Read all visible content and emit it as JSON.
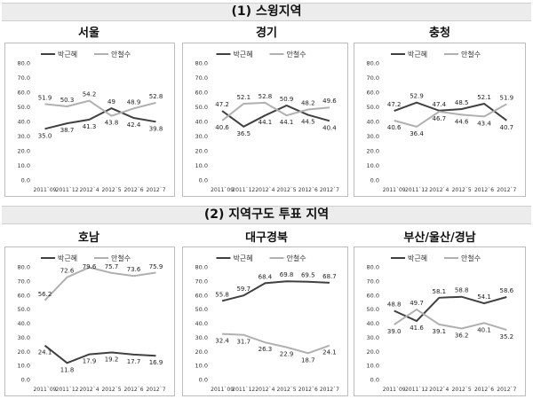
{
  "sections": [
    {
      "title": "(1) 스윙지역"
    },
    {
      "title": "(2) 지역구도 투표 지역"
    }
  ],
  "colors": {
    "park": "#404040",
    "ahn": "#b0b0b0"
  },
  "chart_data": [
    {
      "type": "line",
      "title": "서울",
      "categories": [
        "2011`09",
        "2011`12",
        "2012`4",
        "2012`5",
        "2012`6",
        "2012`7"
      ],
      "ylim": [
        0,
        80
      ],
      "yticks": [
        "0.0",
        "10.0",
        "20.0",
        "30.0",
        "40.0",
        "50.0",
        "60.0",
        "70.0",
        "80.0"
      ],
      "legend": "top",
      "series": [
        {
          "name": "박근혜",
          "values": [
            35.0,
            38.7,
            41.3,
            49,
            42.4,
            39.8
          ],
          "labels": [
            "35.0",
            "38.7",
            "41.3",
            "49",
            "42.4",
            "39.8"
          ]
        },
        {
          "name": "안철수",
          "values": [
            51.9,
            50.3,
            54.2,
            43.8,
            48.9,
            52.8
          ],
          "labels": [
            "51.9",
            "50.3",
            "54.2",
            "43.8",
            "48.9",
            "52.8"
          ]
        }
      ]
    },
    {
      "type": "line",
      "title": "경기",
      "categories": [
        "2011`09",
        "2011`12",
        "2012`4",
        "2012`5",
        "2012`6",
        "2012`7"
      ],
      "ylim": [
        0,
        80
      ],
      "yticks": [
        "0.0",
        "10.0",
        "20.0",
        "30.0",
        "40.0",
        "50.0",
        "60.0",
        "70.0",
        "80.0"
      ],
      "legend": "top",
      "series": [
        {
          "name": "박근혜",
          "values": [
            47.2,
            36.5,
            44.1,
            50.9,
            44.5,
            40.4
          ],
          "labels": [
            "47.2",
            "36.5",
            "44.1",
            "50.9",
            "44.5",
            "40.4"
          ]
        },
        {
          "name": "안철수",
          "values": [
            40.6,
            52.1,
            52.8,
            44.1,
            48.2,
            49.6
          ],
          "labels": [
            "40.6",
            "52.1",
            "52.8",
            "44.1",
            "48.2",
            "49.6"
          ]
        }
      ]
    },
    {
      "type": "line",
      "title": "충청",
      "categories": [
        "2011`09",
        "2011`12",
        "2012`4",
        "2012`5",
        "2012`6",
        "2012`7"
      ],
      "ylim": [
        0,
        80
      ],
      "yticks": [
        "0.0",
        "10.0",
        "20.0",
        "30.0",
        "40.0",
        "50.0",
        "60.0",
        "70.0",
        "80.0"
      ],
      "legend": "top",
      "series": [
        {
          "name": "박근혜",
          "values": [
            47.2,
            52.9,
            47.4,
            48.5,
            52.1,
            40.7
          ],
          "labels": [
            "47.2",
            "52.9",
            "47.4",
            "48.5",
            "52.1",
            "40.7"
          ]
        },
        {
          "name": "안철수",
          "values": [
            40.6,
            36.4,
            46.7,
            44.6,
            43.4,
            51.9
          ],
          "labels": [
            "40.6",
            "36.4",
            "46.7",
            "44.6",
            "43.4",
            "51.9"
          ]
        }
      ]
    },
    {
      "type": "line",
      "title": "호남",
      "categories": [
        "2011`09",
        "2011`12",
        "2012`4",
        "2012`5",
        "2012`6",
        "2012`7"
      ],
      "ylim": [
        0,
        80
      ],
      "yticks": [
        "0.0",
        "10.0",
        "20.0",
        "30.0",
        "40.0",
        "50.0",
        "60.0",
        "70.0",
        "80.0"
      ],
      "legend": "top",
      "series": [
        {
          "name": "박근혜",
          "values": [
            24.1,
            11.8,
            17.9,
            19.2,
            17.7,
            16.9
          ],
          "labels": [
            "24.1",
            "11.8",
            "17.9",
            "19.2",
            "17.7",
            "16.9"
          ]
        },
        {
          "name": "안철수",
          "values": [
            56.2,
            72.6,
            79.6,
            75.7,
            73.6,
            75.9
          ],
          "labels": [
            "56.2",
            "72.6",
            "79.6",
            "75.7",
            "73.6",
            "75.9"
          ]
        }
      ]
    },
    {
      "type": "line",
      "title": "대구경북",
      "categories": [
        "2011`09",
        "2011`12",
        "2012`4",
        "2012`5",
        "2012`6",
        "2012`7"
      ],
      "ylim": [
        0,
        80
      ],
      "yticks": [
        "0.0",
        "10.0",
        "20.0",
        "30.0",
        "40.0",
        "50.0",
        "60.0",
        "70.0",
        "80.0"
      ],
      "legend": "top",
      "series": [
        {
          "name": "박근혜",
          "values": [
            55.8,
            59.7,
            68.4,
            69.8,
            69.5,
            68.7
          ],
          "labels": [
            "55.8",
            "59.7",
            "68.4",
            "69.8",
            "69.5",
            "68.7"
          ]
        },
        {
          "name": "안철수",
          "values": [
            32.4,
            31.7,
            26.3,
            22.9,
            18.7,
            24.1
          ],
          "labels": [
            "32.4",
            "31.7",
            "26.3",
            "22.9",
            "18.7",
            "24.1"
          ]
        }
      ]
    },
    {
      "type": "line",
      "title": "부산/울산/경남",
      "categories": [
        "2011`09",
        "2011`12",
        "2012`4",
        "2012`5",
        "2012`6",
        "2012`7"
      ],
      "ylim": [
        0,
        80
      ],
      "yticks": [
        "0.0",
        "10.0",
        "20.0",
        "30.0",
        "40.0",
        "50.0",
        "60.0",
        "70.0",
        "80.0"
      ],
      "legend": "top",
      "series": [
        {
          "name": "박근혜",
          "values": [
            48.8,
            41.6,
            58.1,
            58.8,
            54.1,
            58.6
          ],
          "labels": [
            "48.8",
            "41.6",
            "58.1",
            "58.8",
            "54.1",
            "58.6"
          ]
        },
        {
          "name": "안철수",
          "values": [
            39.0,
            49.7,
            39.1,
            36.2,
            40.1,
            35.2
          ],
          "labels": [
            "39.0",
            "49.7",
            "39.1",
            "36.2",
            "40.1",
            "35.2"
          ]
        }
      ]
    }
  ]
}
